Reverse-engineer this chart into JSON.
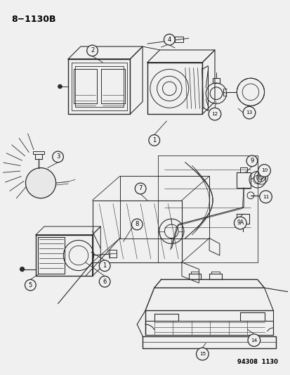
{
  "title": "8−1130B",
  "background_color": "#f0f0f0",
  "line_color": "#2a2a2a",
  "text_color": "#000000",
  "fig_width": 4.14,
  "fig_height": 5.33,
  "dpi": 100,
  "footer_text": "94308  1130",
  "page_bg": "#efefef",
  "draw_bg": "#f5f5f5"
}
